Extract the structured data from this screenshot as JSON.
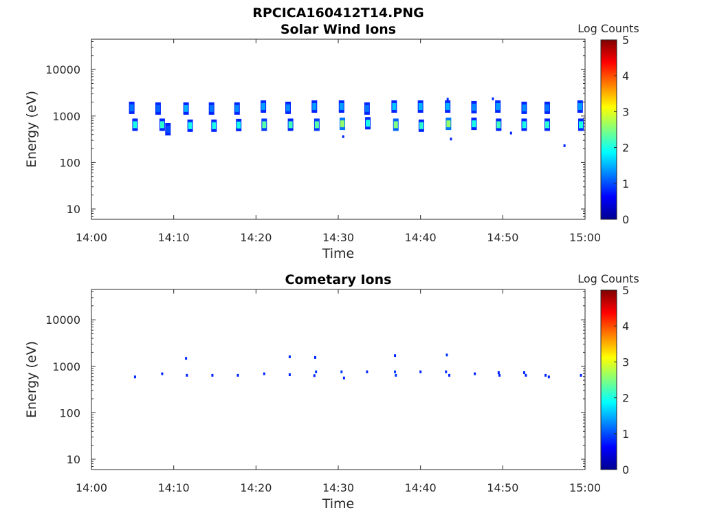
{
  "figure_title": "RPCICA160412T14.PNG",
  "colorbar_label": "Log Counts",
  "colorbar_ticks": [
    "0",
    "1",
    "2",
    "3",
    "4",
    "5"
  ],
  "chart_data": [
    {
      "type": "heatmap",
      "title": "Solar Wind Ions",
      "xlabel": "Time",
      "ylabel": "Energy (eV)",
      "x_ticks": [
        "14:00",
        "14:10",
        "14:20",
        "14:30",
        "14:40",
        "14:50",
        "15:00"
      ],
      "y_ticks": [
        "10",
        "100",
        "1000",
        "10000"
      ],
      "xlim": [
        "14:00",
        "15:00"
      ],
      "ylim": [
        6,
        45000
      ],
      "yscale": "log",
      "color_scale": "jet",
      "clim": [
        0,
        5
      ],
      "grid": false,
      "blobs": [
        {
          "t": 4.9,
          "e": 1500,
          "v": 1.2
        },
        {
          "t": 5.3,
          "e": 650,
          "v": 2.0
        },
        {
          "t": 8.1,
          "e": 1450,
          "v": 1.1
        },
        {
          "t": 8.6,
          "e": 650,
          "v": 2.1
        },
        {
          "t": 9.3,
          "e": 520,
          "v": 1.0
        },
        {
          "t": 11.5,
          "e": 1450,
          "v": 1.5
        },
        {
          "t": 12.0,
          "e": 620,
          "v": 2.0
        },
        {
          "t": 14.6,
          "e": 1450,
          "v": 1.2
        },
        {
          "t": 14.9,
          "e": 620,
          "v": 2.0
        },
        {
          "t": 17.7,
          "e": 1450,
          "v": 1.3
        },
        {
          "t": 17.9,
          "e": 640,
          "v": 2.0
        },
        {
          "t": 20.9,
          "e": 1600,
          "v": 1.4
        },
        {
          "t": 21.0,
          "e": 650,
          "v": 2.3
        },
        {
          "t": 23.9,
          "e": 1500,
          "v": 1.3
        },
        {
          "t": 24.2,
          "e": 650,
          "v": 2.2
        },
        {
          "t": 27.1,
          "e": 1600,
          "v": 1.4
        },
        {
          "t": 27.4,
          "e": 650,
          "v": 2.3
        },
        {
          "t": 30.4,
          "e": 1600,
          "v": 1.4
        },
        {
          "t": 30.5,
          "e": 680,
          "v": 2.6
        },
        {
          "t": 33.5,
          "e": 1450,
          "v": 1.2
        },
        {
          "t": 33.6,
          "e": 700,
          "v": 2.0
        },
        {
          "t": 36.8,
          "e": 1600,
          "v": 1.6
        },
        {
          "t": 37.0,
          "e": 650,
          "v": 2.5
        },
        {
          "t": 40.0,
          "e": 1600,
          "v": 1.5
        },
        {
          "t": 40.1,
          "e": 620,
          "v": 2.1
        },
        {
          "t": 43.3,
          "e": 1600,
          "v": 1.5
        },
        {
          "t": 43.4,
          "e": 680,
          "v": 2.6
        },
        {
          "t": 46.5,
          "e": 1550,
          "v": 1.3
        },
        {
          "t": 46.5,
          "e": 680,
          "v": 2.0
        },
        {
          "t": 49.4,
          "e": 1600,
          "v": 1.4
        },
        {
          "t": 49.5,
          "e": 650,
          "v": 2.2
        },
        {
          "t": 52.6,
          "e": 1500,
          "v": 1.3
        },
        {
          "t": 52.6,
          "e": 650,
          "v": 2.0
        },
        {
          "t": 55.4,
          "e": 1500,
          "v": 1.2
        },
        {
          "t": 55.4,
          "e": 650,
          "v": 2.1
        },
        {
          "t": 59.4,
          "e": 1600,
          "v": 1.4
        },
        {
          "t": 59.5,
          "e": 650,
          "v": 2.0
        }
      ],
      "dots": [
        {
          "t": 43.3,
          "e": 2300,
          "v": 0.8
        },
        {
          "t": 48.8,
          "e": 2350,
          "v": 0.8
        },
        {
          "t": 51.0,
          "e": 430,
          "v": 0.8
        },
        {
          "t": 57.5,
          "e": 230,
          "v": 0.8
        },
        {
          "t": 43.7,
          "e": 320,
          "v": 0.8
        },
        {
          "t": 30.6,
          "e": 360,
          "v": 0.8
        }
      ]
    },
    {
      "type": "heatmap",
      "title": "Cometary Ions",
      "xlabel": "Time",
      "ylabel": "Energy (eV)",
      "x_ticks": [
        "14:00",
        "14:10",
        "14:20",
        "14:30",
        "14:40",
        "14:50",
        "15:00"
      ],
      "y_ticks": [
        "10",
        "100",
        "1000",
        "10000"
      ],
      "xlim": [
        "14:00",
        "15:00"
      ],
      "ylim": [
        6,
        45000
      ],
      "yscale": "log",
      "color_scale": "jet",
      "clim": [
        0,
        5
      ],
      "grid": false,
      "blobs": [],
      "dots": [
        {
          "t": 5.3,
          "e": 590,
          "v": 0.8
        },
        {
          "t": 8.6,
          "e": 690,
          "v": 0.8
        },
        {
          "t": 11.5,
          "e": 1480,
          "v": 0.8
        },
        {
          "t": 11.6,
          "e": 640,
          "v": 0.8
        },
        {
          "t": 14.7,
          "e": 640,
          "v": 0.8
        },
        {
          "t": 17.8,
          "e": 640,
          "v": 0.8
        },
        {
          "t": 21.0,
          "e": 690,
          "v": 0.8
        },
        {
          "t": 24.1,
          "e": 1600,
          "v": 0.8
        },
        {
          "t": 24.1,
          "e": 660,
          "v": 0.8
        },
        {
          "t": 27.2,
          "e": 1550,
          "v": 0.8
        },
        {
          "t": 27.3,
          "e": 760,
          "v": 0.9
        },
        {
          "t": 27.1,
          "e": 630,
          "v": 0.8
        },
        {
          "t": 30.4,
          "e": 760,
          "v": 0.9
        },
        {
          "t": 30.7,
          "e": 560,
          "v": 0.8
        },
        {
          "t": 33.5,
          "e": 760,
          "v": 0.8
        },
        {
          "t": 36.9,
          "e": 1700,
          "v": 0.8
        },
        {
          "t": 36.9,
          "e": 760,
          "v": 0.9
        },
        {
          "t": 37.0,
          "e": 640,
          "v": 0.9
        },
        {
          "t": 40.0,
          "e": 760,
          "v": 0.8
        },
        {
          "t": 43.2,
          "e": 1750,
          "v": 0.9
        },
        {
          "t": 43.1,
          "e": 760,
          "v": 0.8
        },
        {
          "t": 43.5,
          "e": 640,
          "v": 0.8
        },
        {
          "t": 46.6,
          "e": 690,
          "v": 0.8
        },
        {
          "t": 49.5,
          "e": 730,
          "v": 0.8
        },
        {
          "t": 49.6,
          "e": 640,
          "v": 0.8
        },
        {
          "t": 52.6,
          "e": 730,
          "v": 0.8
        },
        {
          "t": 52.8,
          "e": 640,
          "v": 0.8
        },
        {
          "t": 55.2,
          "e": 640,
          "v": 0.8
        },
        {
          "t": 55.6,
          "e": 590,
          "v": 0.8
        },
        {
          "t": 59.5,
          "e": 640,
          "v": 0.8
        }
      ]
    }
  ]
}
